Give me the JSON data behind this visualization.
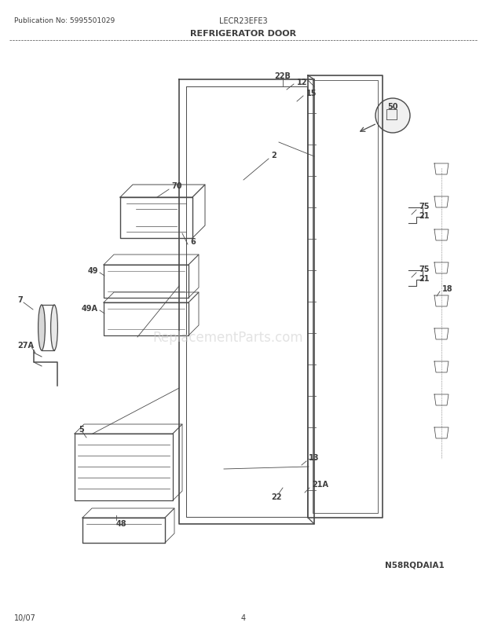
{
  "title": "REFRIGERATOR DOOR",
  "pub_no": "Publication No: 5995501029",
  "model": "LECR23EFE3",
  "diagram_code": "N58RQDAIA1",
  "date": "10/07",
  "page": "4",
  "bg_color": "#ffffff",
  "text_color": "#3d3d3d",
  "line_color": "#4a4a4a",
  "watermark": "ReplacementParts.com",
  "default_fs": 7
}
